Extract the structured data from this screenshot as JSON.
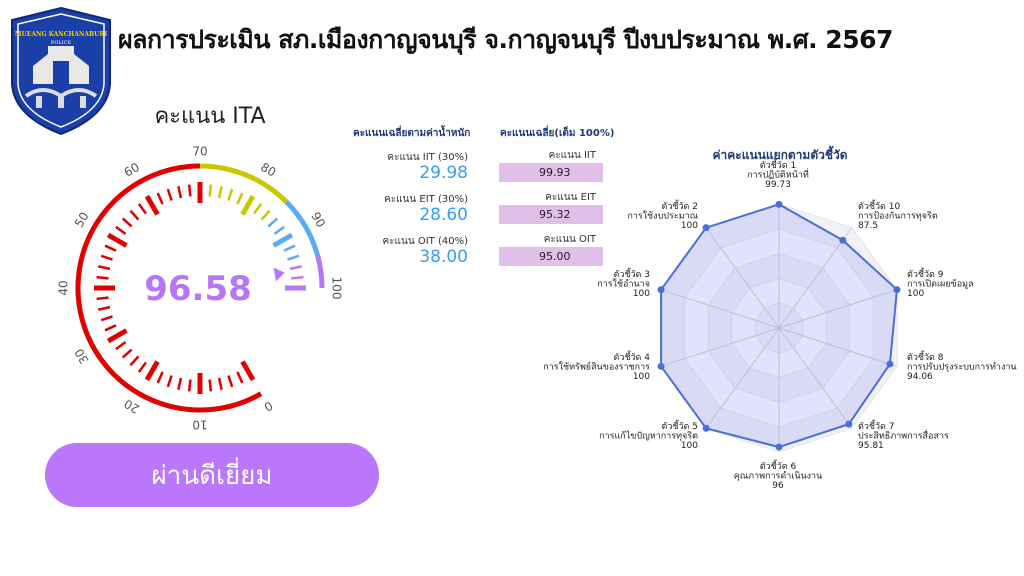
{
  "header": {
    "title": "ผลการประเมิน สภ.เมืองกาญจนบุรี จ.กาญจนบุรี ปีงบประมาณ พ.ศ. 2567",
    "logo_text": "MUEANG KANCHANABURI POLICE"
  },
  "gauge": {
    "title": "คะแนน ITA",
    "value": 96.58,
    "value_text": "96.58",
    "min": 0,
    "max": 100,
    "tick_labels": [
      "0",
      "10",
      "20",
      "30",
      "40",
      "50",
      "60",
      "70",
      "80",
      "90",
      "100"
    ],
    "bands": [
      {
        "from": 0,
        "to": 70,
        "color": "#e00000"
      },
      {
        "from": 70,
        "to": 85,
        "color": "#c8c800"
      },
      {
        "from": 85,
        "to": 95,
        "color": "#5aaaf5"
      },
      {
        "from": 95,
        "to": 100,
        "color": "#b777f5"
      }
    ],
    "value_color": "#b777f5"
  },
  "status": {
    "label": "ผ่านดีเยี่ยม"
  },
  "weighted": {
    "header": "คะแนนเฉลี่ยตามค่าน้ำหนัก",
    "items": [
      {
        "label": "คะแนน IIT (30%)",
        "value": "29.98"
      },
      {
        "label": "คะแนน EIT (30%)",
        "value": "28.60"
      },
      {
        "label": "คะแนน OIT (40%)",
        "value": "38.00"
      }
    ]
  },
  "average": {
    "header": "คะแนนเฉลี่ย(เต็ม 100%)",
    "items": [
      {
        "label": "คะแนน IIT",
        "value": "99.93"
      },
      {
        "label": "คะแนน EIT",
        "value": "95.32"
      },
      {
        "label": "คะแนน OIT",
        "value": "95.00"
      }
    ]
  },
  "chart_data": {
    "type": "radar",
    "title": "ค่าคะแนนแยกตามตัวชี้วัด",
    "rmax": 100,
    "grid": true,
    "color": "#4a6fd6",
    "categories": [
      {
        "name": "ตัวชี้วัด 1",
        "desc": "การปฏิบัติหน้าที่",
        "value": 99.73,
        "label": "99.73"
      },
      {
        "name": "ตัวชี้วัด 2",
        "desc": "การใช้งบประมาณ",
        "value": 100,
        "label": "100"
      },
      {
        "name": "ตัวชี้วัด 3",
        "desc": "การใช้อำนาจ",
        "value": 100,
        "label": "100"
      },
      {
        "name": "ตัวชี้วัด 4",
        "desc": "การใช้ทรัพย์สินของราชการ",
        "value": 100,
        "label": "100"
      },
      {
        "name": "ตัวชี้วัด 5",
        "desc": "การแก้ไขปัญหาการทุจริต",
        "value": 100,
        "label": "100"
      },
      {
        "name": "ตัวชี้วัด 6",
        "desc": "คุณภาพการดำเนินงาน",
        "value": 96,
        "label": "96"
      },
      {
        "name": "ตัวชี้วัด 7",
        "desc": "ประสิทธิภาพการสื่อสาร",
        "value": 95.81,
        "label": "95.81"
      },
      {
        "name": "ตัวชี้วัด 8",
        "desc": "การปรับปรุงระบบการทำงาน",
        "value": 94.06,
        "label": "94.06"
      },
      {
        "name": "ตัวชี้วัด 9",
        "desc": "การเปิดเผยข้อมูล",
        "value": 100,
        "label": "100"
      },
      {
        "name": "ตัวชี้วัด 10",
        "desc": "การป้องกันการทุจริต",
        "value": 87.5,
        "label": "87.5"
      }
    ]
  }
}
